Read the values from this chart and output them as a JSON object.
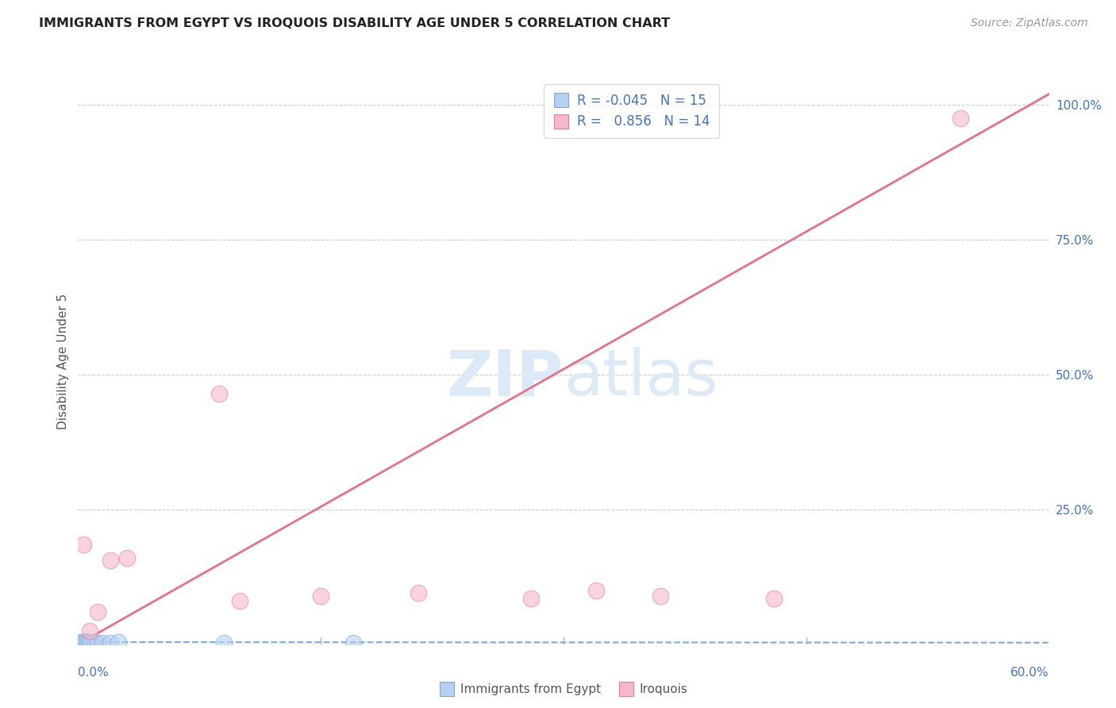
{
  "title": "IMMIGRANTS FROM EGYPT VS IROQUOIS DISABILITY AGE UNDER 5 CORRELATION CHART",
  "source": "Source: ZipAtlas.com",
  "ylabel": "Disability Age Under 5",
  "x_min": 0.0,
  "x_max": 0.6,
  "y_min": 0.0,
  "y_max": 1.05,
  "legend_entries": [
    {
      "label": "Immigrants from Egypt",
      "R": "-0.045",
      "N": "15",
      "color": "#b8d0f0",
      "edge_color": "#7aabdd"
    },
    {
      "label": "Iroquois",
      "R": "0.856",
      "N": "14",
      "color": "#f5b8cb",
      "edge_color": "#e87a9a"
    }
  ],
  "blue_scatter_x": [
    0.001,
    0.002,
    0.003,
    0.004,
    0.005,
    0.006,
    0.007,
    0.008,
    0.01,
    0.012,
    0.015,
    0.02,
    0.025,
    0.09,
    0.17
  ],
  "blue_scatter_y": [
    0.003,
    0.004,
    0.003,
    0.005,
    0.004,
    0.003,
    0.004,
    0.003,
    0.003,
    0.003,
    0.003,
    0.003,
    0.004,
    0.003,
    0.003
  ],
  "pink_scatter_x": [
    0.003,
    0.007,
    0.012,
    0.02,
    0.03,
    0.087,
    0.1,
    0.15,
    0.21,
    0.28,
    0.32,
    0.36,
    0.43,
    0.545
  ],
  "pink_scatter_y": [
    0.185,
    0.025,
    0.06,
    0.155,
    0.16,
    0.465,
    0.08,
    0.09,
    0.095,
    0.085,
    0.1,
    0.09,
    0.085,
    0.975
  ],
  "pink_line_x": [
    0.0,
    0.6
  ],
  "pink_line_y": [
    0.0,
    1.02
  ],
  "blue_line_x": [
    0.0,
    0.6
  ],
  "blue_line_y": [
    0.004,
    0.003
  ],
  "scatter_alpha": 0.6,
  "scatter_size": 220,
  "grid_color": "#cccccc",
  "bg_color": "#ffffff",
  "title_color": "#222222",
  "axis_color": "#4472c4",
  "watermark_color": "#dce9f7",
  "title_fontsize": 11.5,
  "source_fontsize": 10,
  "axis_label_fontsize": 11
}
